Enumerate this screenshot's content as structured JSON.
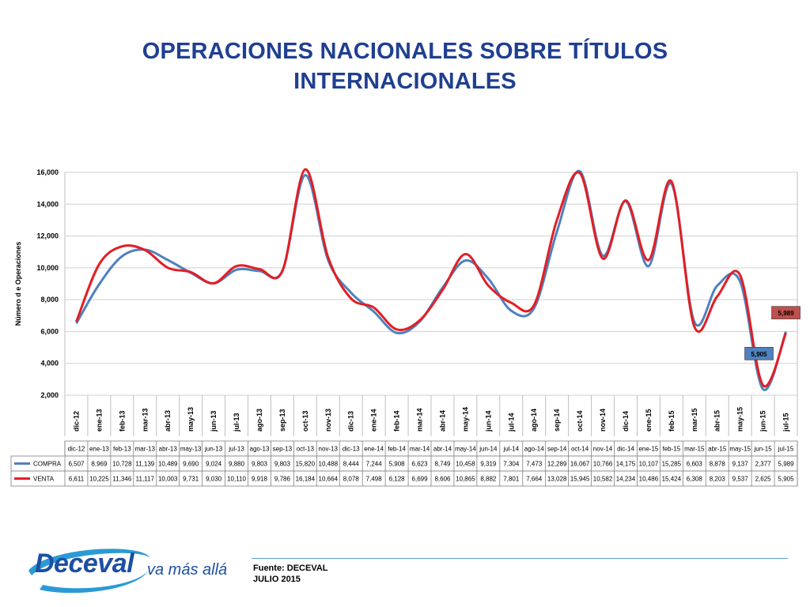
{
  "title": {
    "line1": "OPERACIONES NACIONALES SOBRE TÍTULOS",
    "line2": "INTERNACIONALES"
  },
  "chart_data": {
    "type": "line",
    "ylabel": "Número d e Operaciones",
    "ylim": [
      2000,
      16000
    ],
    "yticks": [
      "2,000",
      "4,000",
      "6,000",
      "8,000",
      "10,000",
      "12,000",
      "14,000",
      "16,000"
    ],
    "grid": true,
    "categories": [
      "dic-12",
      "ene-13",
      "feb-13",
      "mar-13",
      "abr-13",
      "may-13",
      "jun-13",
      "jul-13",
      "ago-13",
      "sep-13",
      "oct-13",
      "nov-13",
      "dic-13",
      "ene-14",
      "feb-14",
      "mar-14",
      "abr-14",
      "may-14",
      "jun-14",
      "jul-14",
      "ago-14",
      "sep-14",
      "oct-14",
      "nov-14",
      "dic-14",
      "ene-15",
      "feb-15",
      "mar-15",
      "abr-15",
      "may-15",
      "jun-15",
      "jul-15"
    ],
    "series": [
      {
        "name": "COMPRA",
        "color": "#4f81bd",
        "values": [
          6507,
          8969,
          10728,
          11139,
          10489,
          9690,
          9024,
          9880,
          9803,
          9803,
          15820,
          10488,
          8444,
          7244,
          5908,
          6623,
          8749,
          10458,
          9319,
          7304,
          7473,
          12289,
          16067,
          10766,
          14175,
          10107,
          15285,
          6603,
          8878,
          9137,
          2377,
          5989
        ],
        "labels": [
          "6,507",
          "8,969",
          "10,728",
          "11,139",
          "10,489",
          "9,690",
          "9,024",
          "9,880",
          "9,803",
          "9,803",
          "15,820",
          "10,488",
          "8,444",
          "7,244",
          "5,908",
          "6,623",
          "8,749",
          "10,458",
          "9,319",
          "7,304",
          "7,473",
          "12,289",
          "16,067",
          "10,766",
          "14,175",
          "10,107",
          "15,285",
          "6,603",
          "8,878",
          "9,137",
          "2,377",
          "5,989"
        ]
      },
      {
        "name": "VENTA",
        "color": "#e31e24",
        "values": [
          6611,
          10225,
          11346,
          11117,
          10003,
          9731,
          9030,
          10110,
          9918,
          9786,
          16184,
          10664,
          8078,
          7498,
          6128,
          6699,
          8606,
          10865,
          8882,
          7801,
          7664,
          13028,
          15945,
          10582,
          14234,
          10486,
          15424,
          6308,
          8203,
          9537,
          2625,
          5905
        ],
        "labels": [
          "6,611",
          "10,225",
          "11,346",
          "11,117",
          "10,003",
          "9,731",
          "9,030",
          "10,110",
          "9,918",
          "9,786",
          "16,184",
          "10,664",
          "8,078",
          "7,498",
          "6,128",
          "6,699",
          "8,606",
          "10,865",
          "8,882",
          "7,801",
          "7,664",
          "13,028",
          "15,945",
          "10,582",
          "14,234",
          "10,486",
          "15,424",
          "6,308",
          "8,203",
          "9,537",
          "2,625",
          "5,905"
        ]
      }
    ],
    "annotations": [
      {
        "text": "5,989",
        "color": "#c0504d"
      },
      {
        "text": "5,905",
        "color": "#4f81bd"
      }
    ]
  },
  "footer": {
    "source": "Fuente: DECEVAL",
    "date": "JULIO 2015"
  },
  "logo": {
    "word": "Deceval",
    "tagline": "va más allá"
  }
}
